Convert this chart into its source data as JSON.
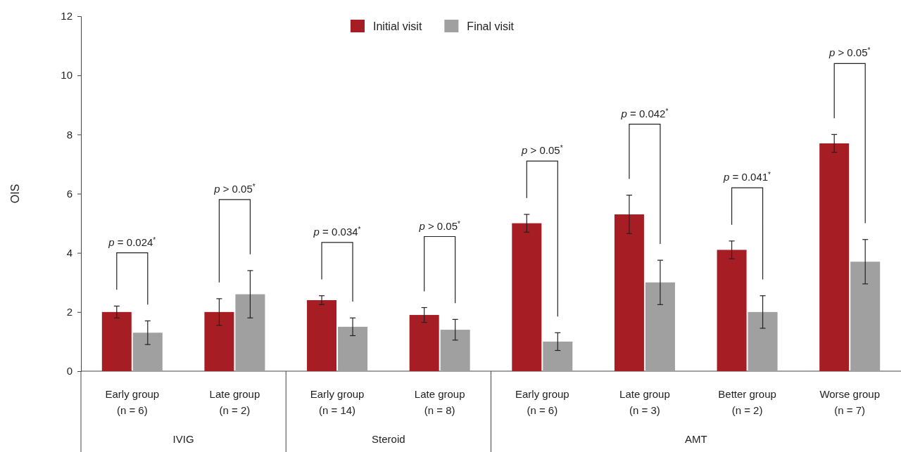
{
  "chart_data": {
    "type": "bar",
    "ylabel": "OIS",
    "categories": [
      "Early group\n(n = 6)",
      "Late group\n(n = 2)",
      "Early group\n(n = 14)",
      "Late group\n(n = 8)",
      "Early group\n(n = 6)",
      "Late group\n(n = 3)",
      "Better group\n(n = 2)",
      "Worse group\n(n = 7)"
    ],
    "series": [
      {
        "name": "Initial visit",
        "color": "#a61e24",
        "values": [
          2.0,
          2.0,
          2.4,
          1.9,
          5.0,
          5.3,
          4.1,
          7.7
        ],
        "errors": [
          0.2,
          0.45,
          0.15,
          0.25,
          0.3,
          0.65,
          0.3,
          0.3
        ]
      },
      {
        "name": "Final visit",
        "color": "#a0a0a0",
        "values": [
          1.3,
          2.6,
          1.5,
          1.4,
          1.0,
          3.0,
          2.0,
          3.7
        ],
        "errors": [
          0.4,
          0.8,
          0.3,
          0.35,
          0.3,
          0.75,
          0.55,
          0.75
        ]
      }
    ],
    "ylim": [
      0,
      12
    ],
    "yticks": [
      0,
      2,
      4,
      6,
      8,
      10,
      12
    ],
    "legend": "top",
    "annotations": [
      "p = 0.024$^{*}$",
      "p > 0.05$^{*}$",
      "p = 0.034$^{*}$",
      "p > 0.05$^{*}$",
      "p > 0.05$^{*}$",
      "p = 0.042$^{*}$",
      "p = 0.041$^{*}$",
      "p > 0.05$^{*}$",
      "IVIG",
      "Steroid",
      "AMT"
    ]
  }
}
